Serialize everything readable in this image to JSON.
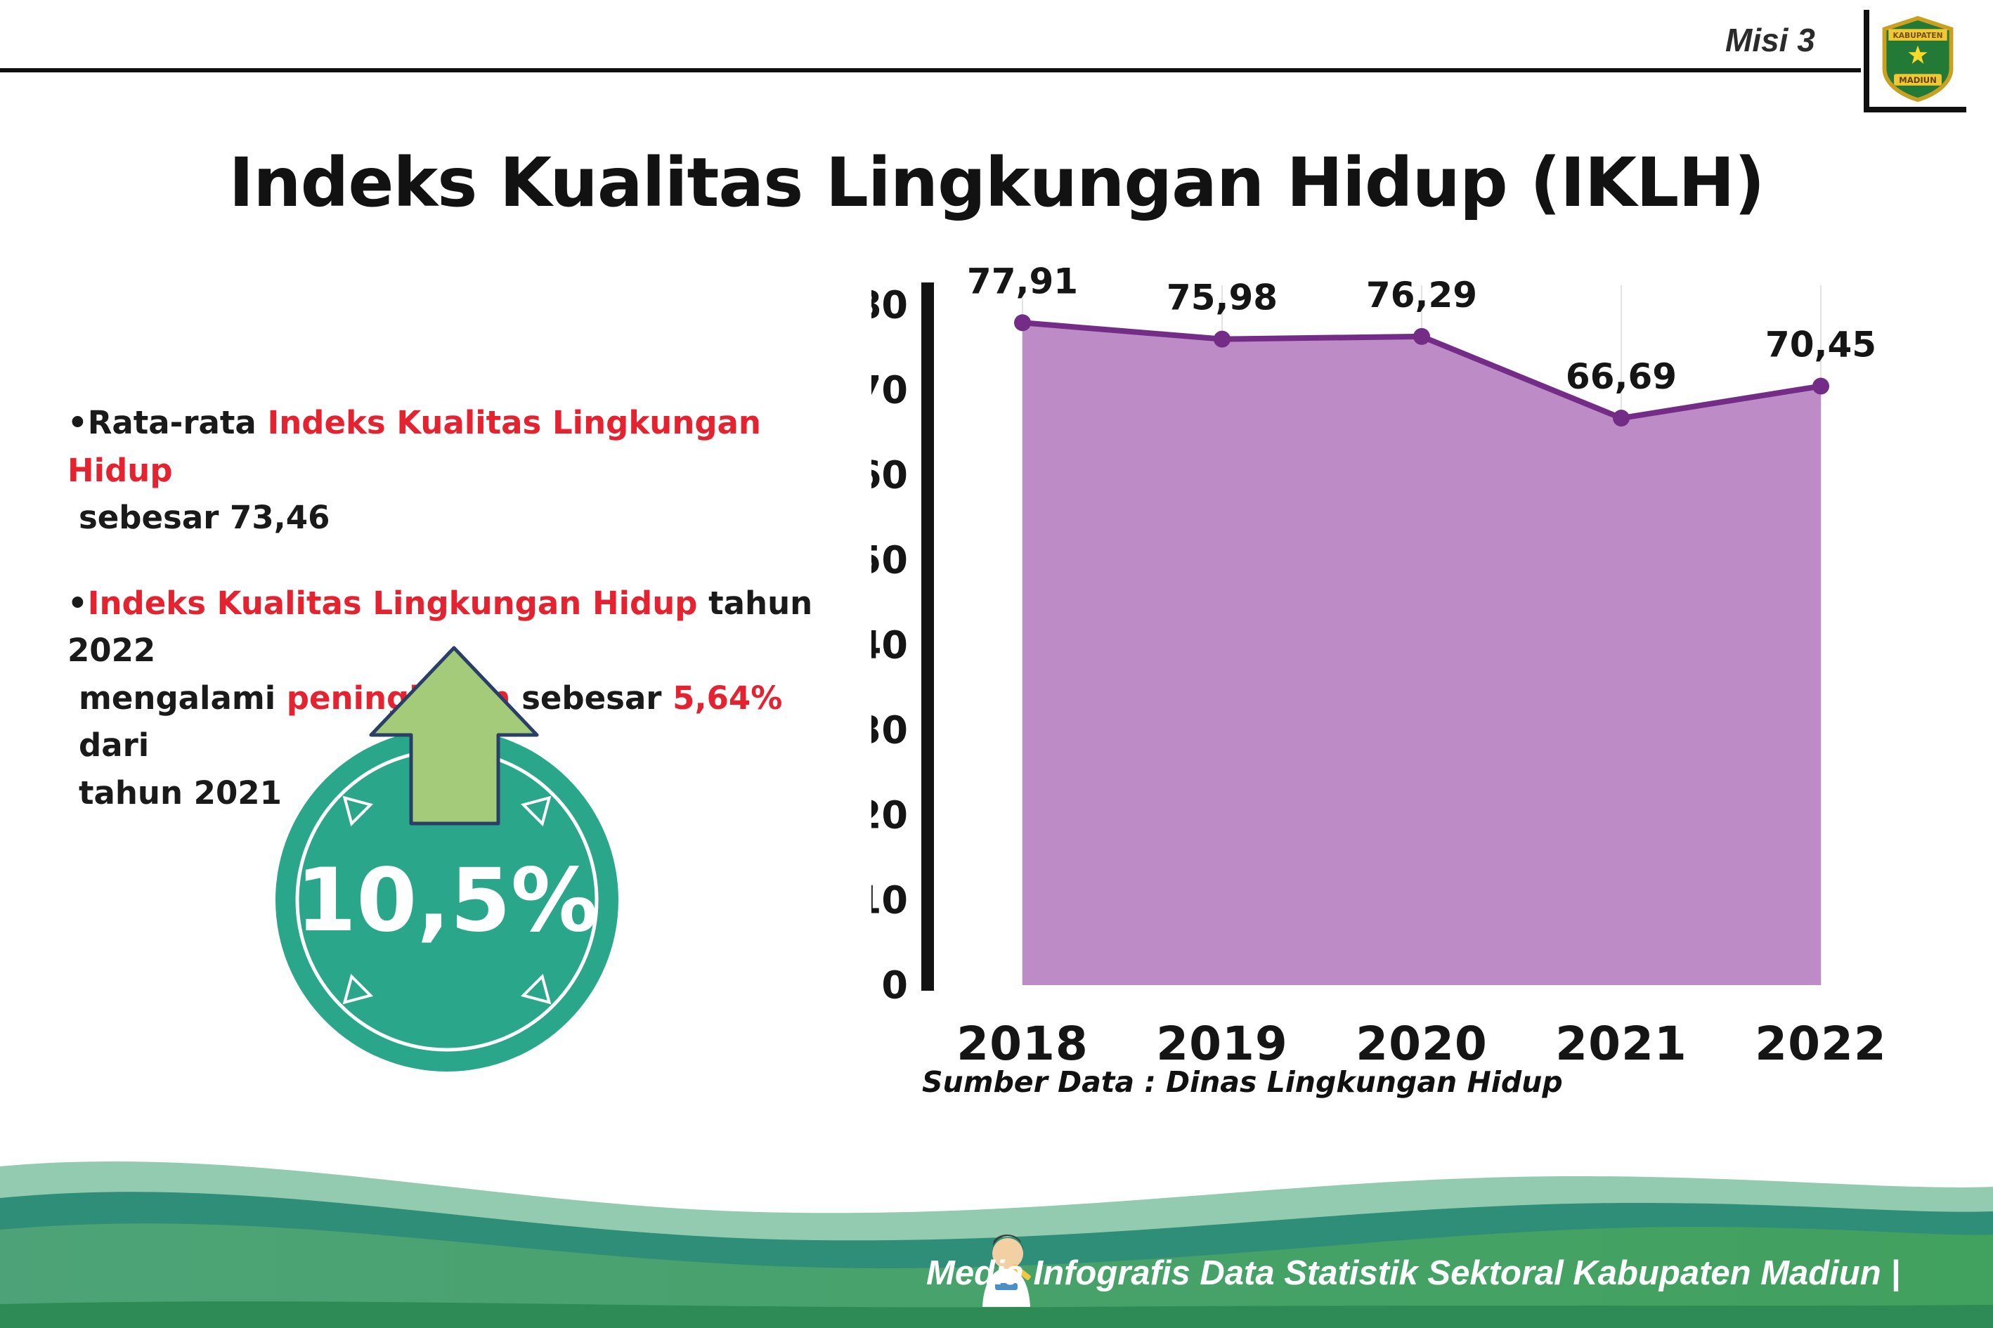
{
  "header": {
    "misi_label": "Misi 3",
    "title": "Indeks Kualitas Lingkungan Hidup (IKLH)",
    "logo": {
      "top_text": "KABUPATEN",
      "bottom_text": "MADIUN"
    }
  },
  "bullets": {
    "marker": "•",
    "b1": {
      "l1_black": "Rata-rata ",
      "l1_red": "Indeks Kualitas Lingkungan Hidup",
      "l2": "sebesar 73,46"
    },
    "b2": {
      "l1_red": "Indeks Kualitas Lingkungan Hidup",
      "l1_black": " tahun 2022",
      "l2_a": "mengalami ",
      "l2_red1": "peningkatan",
      "l2_b": " sebesar ",
      "l2_red2": "5,64%",
      "l2_c": " dari",
      "l3": "tahun 2021"
    }
  },
  "badge": {
    "value": "10,5%",
    "circle_color": "#2aa78b",
    "arrow_color": "#a3cb7a"
  },
  "chart_data": {
    "type": "area",
    "title": "",
    "xlabel": "",
    "ylabel": "",
    "categories": [
      "2018",
      "2019",
      "2020",
      "2021",
      "2022"
    ],
    "values": [
      77.91,
      75.98,
      76.29,
      66.69,
      70.45
    ],
    "value_labels": [
      "77,91",
      "75,98",
      "76,29",
      "66,69",
      "70,45"
    ],
    "ylim": [
      0,
      80
    ],
    "ytick_step": 10,
    "grid": "vertical-light",
    "legend": "none",
    "fill_color": "#bd8bc5",
    "line_color": "#732d86",
    "source": "Sumber Data : Dinas Lingkungan Hidup"
  },
  "footer": {
    "caption": "Media Infografis Data Statistik Sektoral Kabupaten Madiun |"
  },
  "colors": {
    "accent_red": "#e52330",
    "teal_badge": "#2aa78b",
    "footer_green_dark": "#2e8b55"
  }
}
